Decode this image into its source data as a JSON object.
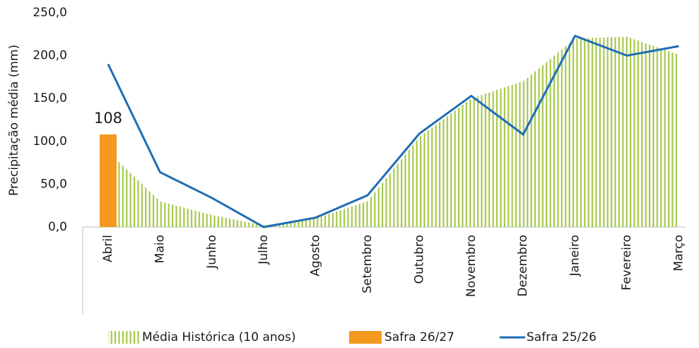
{
  "chart_data": {
    "type": "combo",
    "y_label": "Precipitação média (mm)",
    "categories": [
      "Abril",
      "Maio",
      "Junho",
      "Julho",
      "Agosto",
      "Setembro",
      "Outubro",
      "Novembro",
      "Dezembro",
      "Janeiro",
      "Fevereiro",
      "Março"
    ],
    "series": [
      {
        "name": "Média Histórica (10 anos)",
        "type": "area",
        "color": "#a5c94c",
        "values": [
          88,
          30,
          14,
          2,
          10,
          30,
          105,
          150,
          170,
          220,
          222,
          201
        ]
      },
      {
        "name": "Safra 26/27",
        "type": "bar",
        "color": "#f39a1f",
        "values": [
          108,
          null,
          null,
          null,
          null,
          null,
          null,
          null,
          null,
          null,
          null,
          null
        ]
      },
      {
        "name": "Safra 25/26",
        "type": "line",
        "color": "#1f6db5",
        "values": [
          190,
          64,
          34,
          0,
          11,
          37,
          109,
          153,
          108,
          223,
          200,
          211
        ]
      }
    ],
    "ylim": [
      0,
      250
    ],
    "yticks": [
      {
        "value": 0,
        "label": "0,0"
      },
      {
        "value": 50,
        "label": "50,0"
      },
      {
        "value": 100,
        "label": "100,0"
      },
      {
        "value": 150,
        "label": "150,0"
      },
      {
        "value": 200,
        "label": "200,0"
      },
      {
        "value": 250,
        "label": "250,0"
      }
    ],
    "legend": "bottom"
  }
}
